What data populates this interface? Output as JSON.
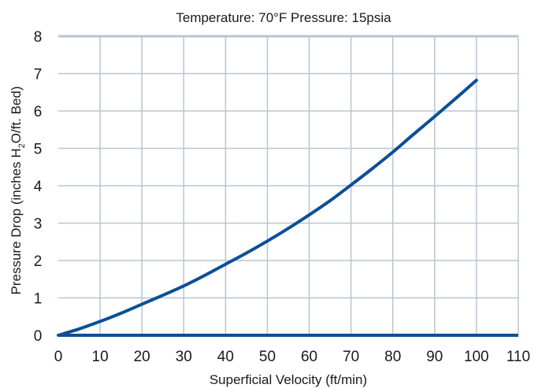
{
  "chart_data": {
    "type": "line",
    "title": "Temperature: 70°F   Pressure: 15psia",
    "xlabel": "Superficial Velocity (ft/min)",
    "ylabel": {
      "before_sub_1": "Pressure Drop (inches H",
      "sub_1": "2",
      "between": "O/ft. Bed",
      "after": ")"
    },
    "xlim": [
      0,
      110
    ],
    "ylim": [
      0,
      8
    ],
    "x_ticks": [
      "0",
      "10",
      "20",
      "30",
      "40",
      "50",
      "60",
      "70",
      "80",
      "90",
      "100",
      "110"
    ],
    "y_ticks": [
      "0",
      "1",
      "2",
      "3",
      "4",
      "5",
      "6",
      "7",
      "8"
    ],
    "grid": true,
    "line_color": "#0b4f96",
    "grid_color": "#b8c5d3",
    "series": [
      {
        "x": [
          0,
          5,
          10,
          15,
          20,
          25,
          30,
          35,
          40,
          45,
          50,
          55,
          60,
          65,
          70,
          75,
          80,
          85,
          90,
          95,
          100
        ],
        "y": [
          0,
          0.17,
          0.37,
          0.59,
          0.83,
          1.07,
          1.32,
          1.6,
          1.9,
          2.2,
          2.52,
          2.86,
          3.22,
          3.6,
          4.02,
          4.45,
          4.9,
          5.38,
          5.85,
          6.33,
          6.82
        ]
      }
    ]
  }
}
